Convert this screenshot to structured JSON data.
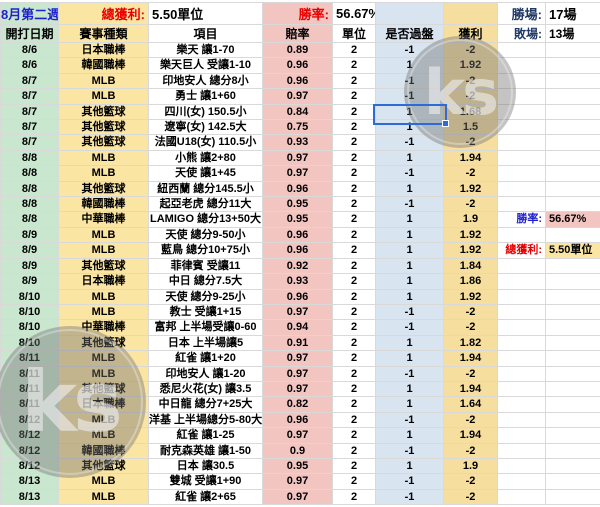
{
  "header": {
    "week_label": "8月第二週",
    "total_profit_label": "總獲利:",
    "total_profit_value": "5.50單位",
    "win_rate_label": "勝率:",
    "win_rate_value": "56.67%",
    "wins_label": "勝場:",
    "wins_value": "17場",
    "losses_label": "敗場:",
    "losses_value": "13場"
  },
  "columns": [
    "開打日期",
    "賽事種類",
    "項目",
    "賠率",
    "單位",
    "是否過盤",
    "獲利"
  ],
  "rows": [
    [
      "8/6",
      "日本職棒",
      "樂天 讓1-70",
      "0.89",
      "2",
      "-1",
      "-2"
    ],
    [
      "8/6",
      "韓國職棒",
      "樂天巨人 受讓1-10",
      "0.96",
      "2",
      "1",
      "1.92"
    ],
    [
      "8/7",
      "MLB",
      "印地安人 總分8小",
      "0.96",
      "2",
      "-1",
      "-2"
    ],
    [
      "8/7",
      "MLB",
      "勇士 讓1+60",
      "0.97",
      "2",
      "-1",
      "-2"
    ],
    [
      "8/7",
      "其他籃球",
      "四川(女) 150.5小",
      "0.84",
      "2",
      "1",
      "1.68"
    ],
    [
      "8/7",
      "其他籃球",
      "遼寧(女) 142.5大",
      "0.75",
      "2",
      "1",
      "1.5"
    ],
    [
      "8/7",
      "其他籃球",
      "法國U18(女) 110.5小",
      "0.93",
      "2",
      "-1",
      "-2"
    ],
    [
      "8/8",
      "MLB",
      "小熊 讓2+80",
      "0.97",
      "2",
      "1",
      "1.94"
    ],
    [
      "8/8",
      "MLB",
      "天使 讓1+45",
      "0.97",
      "2",
      "-1",
      "-2"
    ],
    [
      "8/8",
      "其他籃球",
      "紐西蘭 總分145.5小",
      "0.96",
      "2",
      "1",
      "1.92"
    ],
    [
      "8/8",
      "韓國職棒",
      "起亞老虎 總分11大",
      "0.95",
      "2",
      "-1",
      "-2"
    ],
    [
      "8/8",
      "中華職棒",
      "LAMIGO 總分13+50大",
      "0.95",
      "2",
      "1",
      "1.9"
    ],
    [
      "8/9",
      "MLB",
      "天使 總分9-50小",
      "0.96",
      "2",
      "1",
      "1.92"
    ],
    [
      "8/9",
      "MLB",
      "藍鳥 總分10+75小",
      "0.96",
      "2",
      "1",
      "1.92"
    ],
    [
      "8/9",
      "其他籃球",
      "菲律賓 受讓11",
      "0.92",
      "2",
      "1",
      "1.84"
    ],
    [
      "8/9",
      "日本職棒",
      "中日 總分7.5大",
      "0.93",
      "2",
      "1",
      "1.86"
    ],
    [
      "8/10",
      "MLB",
      "天使 總分9-25小",
      "0.96",
      "2",
      "1",
      "1.92"
    ],
    [
      "8/10",
      "MLB",
      "教士 受讓1+15",
      "0.97",
      "2",
      "-1",
      "-2"
    ],
    [
      "8/10",
      "中華職棒",
      "富邦 上半場受讓0-60",
      "0.94",
      "2",
      "-1",
      "-2"
    ],
    [
      "8/10",
      "其他籃球",
      "日本 上半場讓5",
      "0.91",
      "2",
      "1",
      "1.82"
    ],
    [
      "8/11",
      "MLB",
      "紅雀 讓1+20",
      "0.97",
      "2",
      "1",
      "1.94"
    ],
    [
      "8/11",
      "MLB",
      "印地安人 讓1-20",
      "0.97",
      "2",
      "-1",
      "-2"
    ],
    [
      "8/11",
      "其他籃球",
      "悉尼火花(女) 讓3.5",
      "0.97",
      "2",
      "1",
      "1.94"
    ],
    [
      "8/11",
      "日本職棒",
      "中日龍 總分7+25大",
      "0.82",
      "2",
      "1",
      "1.64"
    ],
    [
      "8/12",
      "MLB",
      "洋基 上半場總分5-80大",
      "0.96",
      "2",
      "-1",
      "-2"
    ],
    [
      "8/12",
      "MLB",
      "紅雀 讓1-25",
      "0.97",
      "2",
      "1",
      "1.94"
    ],
    [
      "8/12",
      "韓國職棒",
      "耐克森英雄 讓1-50",
      "0.9",
      "2",
      "-1",
      "-2"
    ],
    [
      "8/12",
      "其他籃球",
      "日本 讓30.5",
      "0.95",
      "2",
      "1",
      "1.9"
    ],
    [
      "8/13",
      "MLB",
      "雙城 受讓1+90",
      "0.97",
      "2",
      "-1",
      "-2"
    ],
    [
      "8/13",
      "MLB",
      "紅雀 讓2+65",
      "0.97",
      "2",
      "-1",
      "-2"
    ]
  ],
  "side": {
    "win_rate": {
      "row": 12,
      "label": "勝率:",
      "value": "56.67%"
    },
    "total_profit": {
      "row": 14,
      "label": "總獲利:",
      "value": "5.50單位"
    }
  },
  "selection": {
    "row": 5,
    "column": "是否過盤",
    "value": "1"
  },
  "watermark": {
    "text": "ks"
  },
  "colors": {
    "green": "#C9E7CF",
    "yellow": "#FBE5A3",
    "pink": "#F2C5C1",
    "blue": "#D8E5F1",
    "profit_yellow": "#F6DF9E",
    "label_blue": "#2021CE",
    "label_red": "#E80000",
    "label_navy": "#203864",
    "selection": "#2E6BD6"
  }
}
